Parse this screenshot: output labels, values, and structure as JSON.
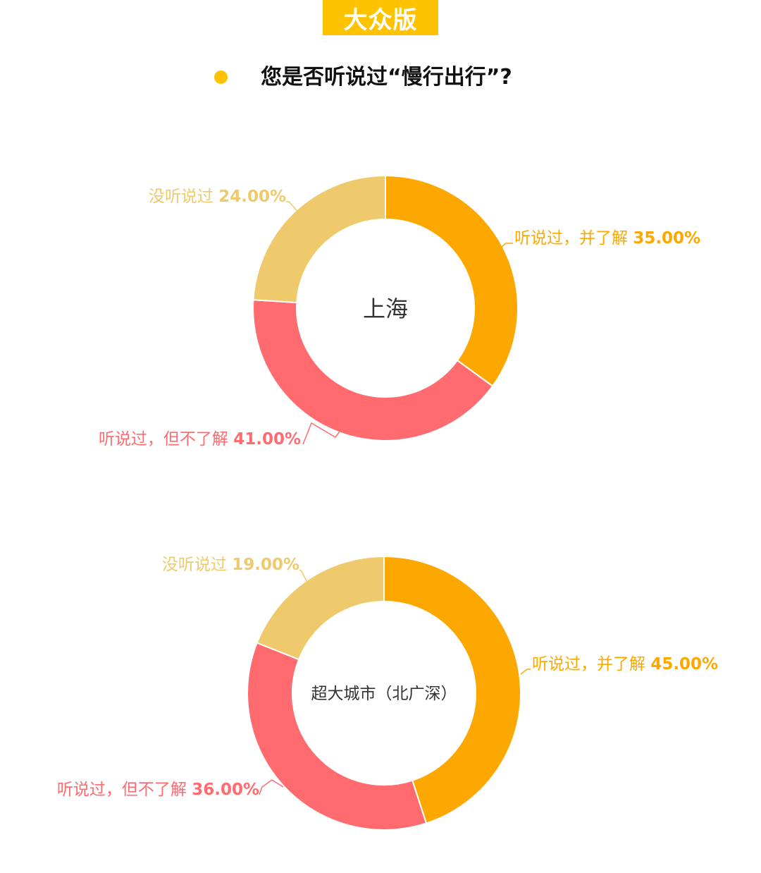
{
  "header": {
    "badge": "大众版",
    "question": "您是否听说过“慢行出行”?"
  },
  "colors": {
    "badge": "#fdc300",
    "bullet": "#fdc300"
  },
  "chart_data": [
    {
      "type": "pie",
      "title": "",
      "center_label": "上海",
      "slices": [
        {
          "label": "听说过，并了解",
          "value": 35.0,
          "display": "35.00%",
          "color": "#fca800"
        },
        {
          "label": "听说过，但不了解",
          "value": 41.0,
          "display": "41.00%",
          "color": "#ff6b6f"
        },
        {
          "label": "没听说过",
          "value": 24.0,
          "display": "24.00%",
          "color": "#efca6c"
        }
      ]
    },
    {
      "type": "pie",
      "title": "",
      "center_label": "超大城市（北广深）",
      "slices": [
        {
          "label": "听说过，并了解",
          "value": 45.0,
          "display": "45.00%",
          "color": "#fca800"
        },
        {
          "label": "听说过，但不了解",
          "value": 36.0,
          "display": "36.00%",
          "color": "#ff6b6f"
        },
        {
          "label": "没听说过",
          "value": 19.0,
          "display": "19.00%",
          "color": "#efca6c"
        }
      ]
    }
  ]
}
